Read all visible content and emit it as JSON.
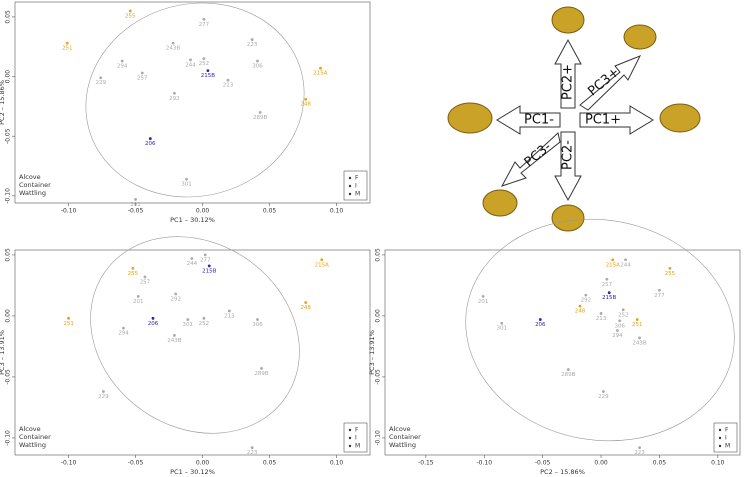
{
  "chart_data": [
    {
      "type": "scatter",
      "xlabel": "PC1 – 30.12%",
      "ylabel": "PC2 – 15.86%",
      "xlim": [
        -0.14,
        0.125
      ],
      "ylim": [
        -0.106,
        0.0625
      ],
      "xticks": [
        {
          "value": -0.1,
          "label": "-0.10"
        },
        -0.05,
        {
          "value": 0,
          "label": "0.00"
        },
        0.05,
        {
          "value": 0.1,
          "label": "0.10"
        }
      ],
      "yticks": [
        {
          "value": -0.1,
          "label": "-0.10"
        },
        -0.05,
        {
          "value": 0,
          "label": "0.00"
        },
        0.05
      ],
      "markers": [
        "F",
        "I",
        "M"
      ],
      "series": [
        {
          "name": "Alcove",
          "color": "#e6a117",
          "labels": [
            "255",
            "251",
            "215A",
            "248"
          ],
          "x": [
            -0.054,
            -0.101,
            0.088,
            0.077
          ],
          "y": [
            0.055,
            0.028,
            0.007,
            -0.019
          ]
        },
        {
          "name": "Container",
          "color": "#aaaaaa",
          "labels": [
            "277",
            "243B",
            "223",
            "294",
            "257",
            "229",
            "244",
            "252",
            "306",
            "213",
            "292",
            "289B",
            "301",
            "201"
          ],
          "x": [
            0.001,
            -0.022,
            0.037,
            -0.06,
            -0.045,
            -0.076,
            -0.009,
            0.001,
            0.041,
            0.019,
            -0.021,
            0.043,
            -0.012,
            -0.05
          ],
          "y": [
            0.048,
            0.028,
            0.031,
            0.013,
            0.003,
            -0.001,
            0.014,
            0.015,
            0.013,
            -0.003,
            -0.014,
            -0.03,
            -0.086,
            -0.103
          ]
        },
        {
          "name": "Wattling",
          "color": "#2626b8",
          "labels": [
            "215B",
            "206"
          ],
          "x": [
            0.004,
            -0.039
          ],
          "y": [
            0.005,
            -0.052
          ]
        }
      ]
    },
    {
      "type": "scatter",
      "xlabel": "PC1 – 30.12%",
      "ylabel": "PC3 – 13.91%",
      "xlim": [
        -0.14,
        0.125
      ],
      "ylim": [
        -0.114,
        0.054
      ],
      "xticks": [
        {
          "value": -0.1,
          "label": "-0.10"
        },
        -0.05,
        {
          "value": 0,
          "label": "0.00"
        },
        0.05,
        {
          "value": 0.1,
          "label": "0.10"
        }
      ],
      "yticks": [
        {
          "value": -0.1,
          "label": "-0.10"
        },
        -0.05,
        {
          "value": 0,
          "label": "0.00"
        },
        0.05
      ],
      "markers": [
        "F",
        "I",
        "M"
      ],
      "series": [
        {
          "name": "Alcove",
          "color": "#e6a117",
          "labels": [
            "255",
            "251",
            "215A",
            "248"
          ],
          "x": [
            -0.052,
            -0.1,
            0.089,
            0.077
          ],
          "y": [
            0.039,
            -0.002,
            0.046,
            0.011
          ]
        },
        {
          "name": "Container",
          "color": "#aaaaaa",
          "labels": [
            "277",
            "252",
            "213",
            "306",
            "243B",
            "289B",
            "229",
            "223",
            "294",
            "301",
            "292",
            "201",
            "257",
            "244"
          ],
          "x": [
            0.002,
            0.001,
            0.02,
            0.041,
            -0.021,
            0.044,
            -0.074,
            0.037,
            -0.059,
            -0.011,
            -0.02,
            -0.048,
            -0.043,
            -0.008
          ],
          "y": [
            0.05,
            -0.002,
            0.004,
            -0.003,
            -0.016,
            -0.043,
            -0.062,
            -0.108,
            -0.01,
            -0.003,
            0.018,
            0.016,
            0.032,
            0.047
          ]
        },
        {
          "name": "Wattling",
          "color": "#2626b8",
          "labels": [
            "215B",
            "206"
          ],
          "x": [
            0.005,
            -0.037
          ],
          "y": [
            0.041,
            -0.002
          ]
        }
      ]
    },
    {
      "type": "scatter",
      "xlabel": "PC2 – 15.86%",
      "ylabel": "PC3 – 13.91%",
      "xlim": [
        -0.185,
        0.119
      ],
      "ylim": [
        -0.114,
        0.054
      ],
      "xticks": [
        -0.15,
        {
          "value": -0.1,
          "label": "-0.10"
        },
        -0.05,
        {
          "value": 0,
          "label": "0.00"
        },
        0.05,
        {
          "value": 0.1,
          "label": "0.10"
        }
      ],
      "yticks": [
        {
          "value": -0.1,
          "label": "-0.10"
        },
        -0.05,
        {
          "value": 0,
          "label": "0.00"
        },
        0.05
      ],
      "markers": [
        "F",
        "I",
        "M"
      ],
      "series": [
        {
          "name": "Alcove",
          "color": "#e6a117",
          "labels": [
            "215A",
            "255",
            "248",
            "251"
          ],
          "x": [
            0.01,
            0.059,
            -0.018,
            0.031
          ],
          "y": [
            0.046,
            0.039,
            0.008,
            -0.003
          ]
        },
        {
          "name": "Container",
          "color": "#aaaaaa",
          "labels": [
            "244",
            "277",
            "257",
            "292",
            "252",
            "213",
            "306",
            "294",
            "243B",
            "201",
            "301",
            "289B",
            "229",
            "223"
          ],
          "x": [
            0.021,
            0.05,
            0.005,
            -0.013,
            0.019,
            0,
            0.016,
            0.014,
            0.033,
            -0.101,
            -0.085,
            -0.028,
            0.002,
            0.033
          ],
          "y": [
            0.046,
            0.021,
            0.03,
            0.017,
            0.005,
            0.002,
            -0.004,
            -0.012,
            -0.018,
            0.016,
            -0.006,
            -0.044,
            -0.062,
            -0.108
          ]
        },
        {
          "name": "Wattling",
          "color": "#2626b8",
          "labels": [
            "215B",
            "206"
          ],
          "x": [
            0.007,
            -0.052
          ],
          "y": [
            0.019,
            -0.003
          ]
        }
      ]
    }
  ],
  "diagram": {
    "labels": [
      "PC2+",
      "PC3+",
      "PC1-",
      "PC1+",
      "PC3-",
      "PC2-"
    ]
  }
}
